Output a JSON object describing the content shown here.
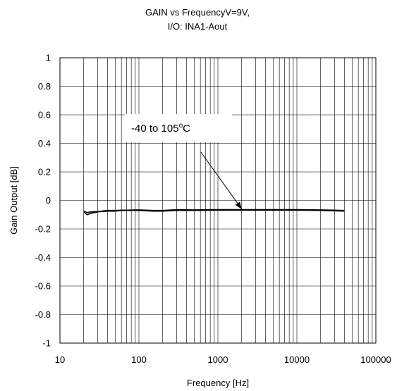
{
  "chart_data": {
    "type": "line",
    "title": "GAIN vs FrequencyV=9V,",
    "subtitle": "I/O: INA1-Aout",
    "xlabel": "Frequency [Hz]",
    "ylabel": "Gain Output [dB]",
    "x_scale": "log",
    "xlim": [
      10,
      100000
    ],
    "ylim": [
      -1,
      1
    ],
    "x_ticks": [
      "10",
      "100",
      "1000",
      "10000",
      "100000"
    ],
    "y_ticks": [
      "1",
      "0.8",
      "0.6",
      "0.4",
      "0.2",
      "0",
      "-0.2",
      "-0.4",
      "-0.6",
      "-0.8",
      "-1"
    ],
    "grid": true,
    "legend": "none",
    "annotation": {
      "text_prefix": "-40 to 105",
      "superscript": "o",
      "text_suffix": "C",
      "arrow_to": [
        2000,
        -0.07
      ]
    },
    "series": [
      {
        "color": "#000000",
        "x": [
          20,
          22,
          25,
          30,
          40,
          50,
          60,
          70,
          100,
          150,
          200,
          300,
          500,
          1000,
          2000,
          5000,
          10000,
          20000,
          40000
        ],
        "y": [
          -0.08,
          -0.1,
          -0.09,
          -0.08,
          -0.075,
          -0.075,
          -0.07,
          -0.07,
          -0.07,
          -0.075,
          -0.075,
          -0.07,
          -0.07,
          -0.068,
          -0.068,
          -0.068,
          -0.068,
          -0.07,
          -0.075
        ]
      },
      {
        "color": "#000000",
        "x": [
          20,
          22,
          25,
          30,
          40,
          50,
          60,
          70,
          100,
          150,
          200,
          300,
          500,
          1000,
          2000,
          5000,
          10000,
          20000,
          40000
        ],
        "y": [
          -0.075,
          -0.085,
          -0.08,
          -0.078,
          -0.07,
          -0.07,
          -0.068,
          -0.068,
          -0.066,
          -0.07,
          -0.07,
          -0.065,
          -0.066,
          -0.064,
          -0.064,
          -0.064,
          -0.064,
          -0.066,
          -0.07
        ]
      }
    ]
  }
}
